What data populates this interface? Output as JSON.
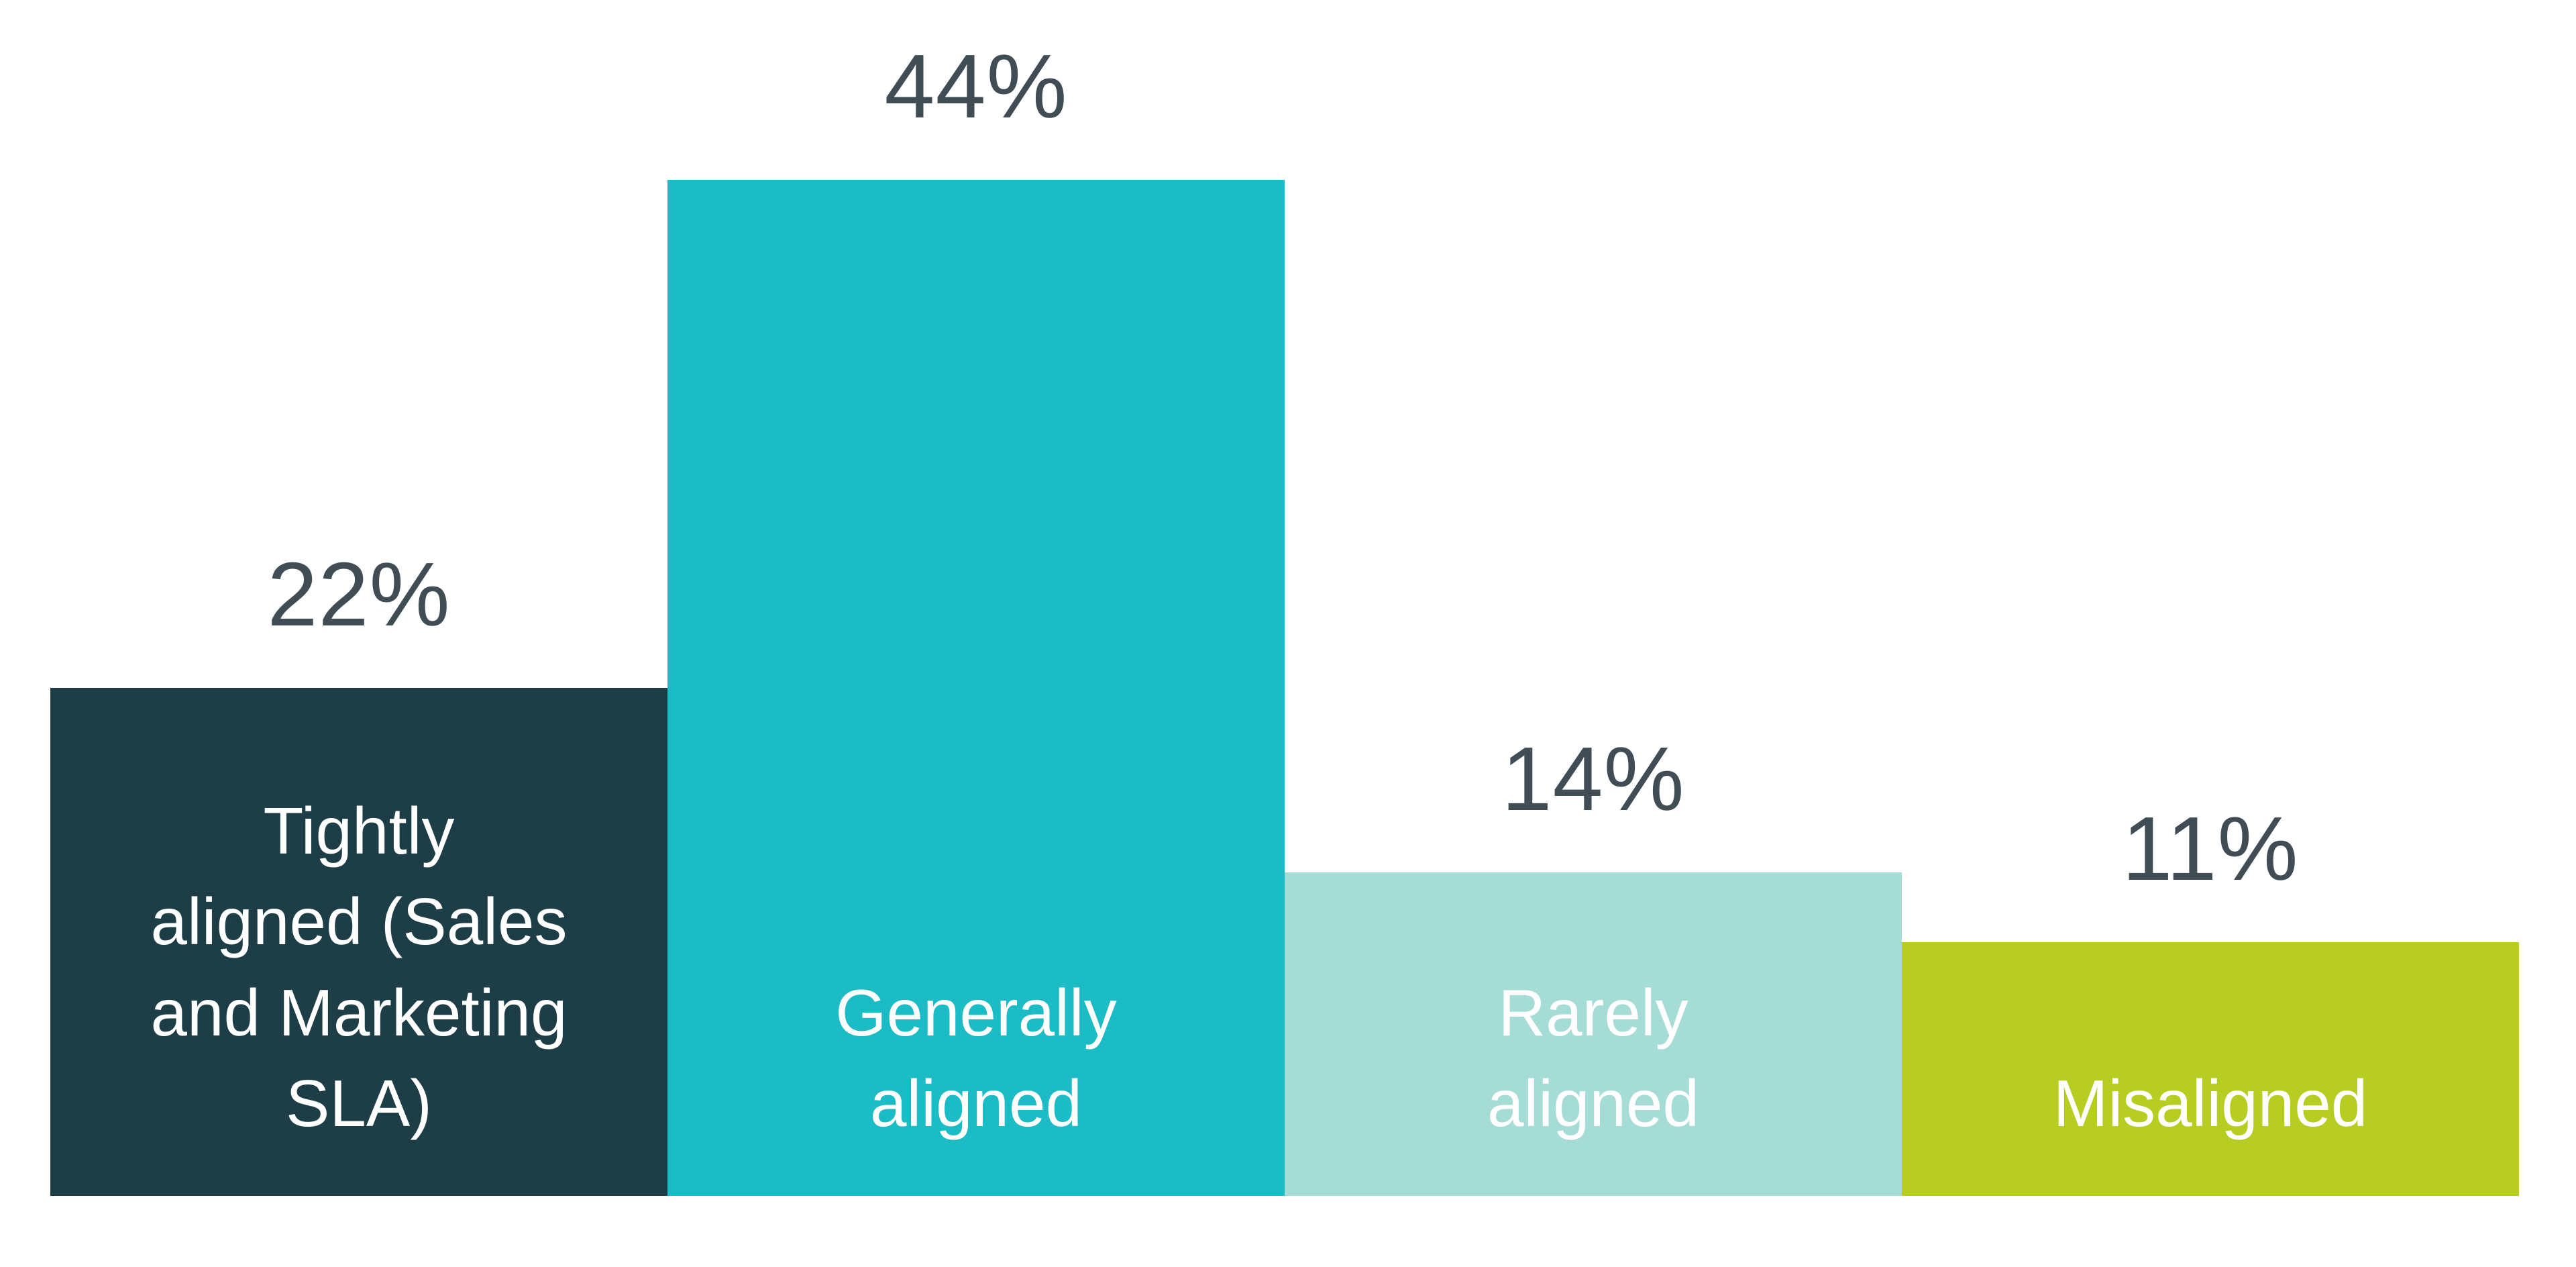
{
  "chart_data": {
    "type": "bar",
    "title": "",
    "xlabel": "",
    "ylabel": "",
    "categories": [
      "Tightly aligned (Sales and Marketing SLA)",
      "Generally aligned",
      "Rarely aligned",
      "Misaligned"
    ],
    "values": [
      22,
      44,
      14,
      11
    ],
    "ylim": [
      0,
      44
    ],
    "grid": false,
    "axes_visible": false,
    "legend": "none",
    "background_color": "#ffffff",
    "value_label_color": "#414d55",
    "bar_label_color": "#ffffff",
    "bars": [
      {
        "label": "Tightly aligned (Sales and Marketing SLA)",
        "label_lines": [
          "Tightly",
          "aligned (Sales",
          "and Marketing",
          "SLA)"
        ],
        "value": 22,
        "value_label": "22%",
        "color": "#1d3e46"
      },
      {
        "label": "Generally aligned",
        "label_lines": [
          "Generally",
          "aligned"
        ],
        "value": 44,
        "value_label": "44%",
        "color": "#1cbcc7"
      },
      {
        "label": "Rarely aligned",
        "label_lines": [
          "Rarely",
          "aligned"
        ],
        "value": 14,
        "value_label": "14%",
        "color": "#a5dcd6"
      },
      {
        "label": "Misaligned",
        "label_lines": [
          "Misaligned"
        ],
        "value": 11,
        "value_label": "11%",
        "color": "#b7cd21"
      }
    ]
  }
}
